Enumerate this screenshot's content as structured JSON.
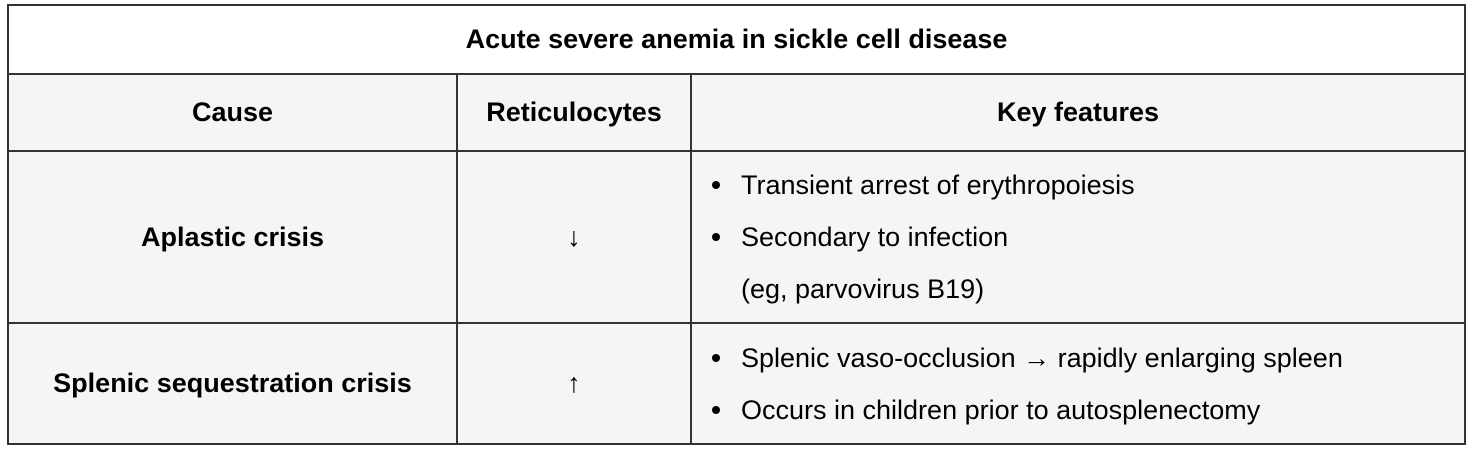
{
  "table": {
    "title": "Acute severe anemia in sickle cell disease",
    "headers": {
      "cause": "Cause",
      "reticulocytes": "Reticulocytes",
      "key_features": "Key features"
    },
    "rows": [
      {
        "cause": "Aplastic crisis",
        "reticulocytes": "↓",
        "features": [
          {
            "text": "Transient arrest of erythropoiesis",
            "continuation": ""
          },
          {
            "text": "Secondary to infection",
            "continuation": "(eg, parvovirus B19)"
          }
        ]
      },
      {
        "cause": "Splenic sequestration crisis",
        "reticulocytes": "↑",
        "features": [
          {
            "text": "Splenic vaso-occlusion → rapidly enlarging spleen",
            "continuation": ""
          },
          {
            "text": "Occurs in children prior to autosplenectomy",
            "continuation": ""
          }
        ]
      }
    ]
  }
}
